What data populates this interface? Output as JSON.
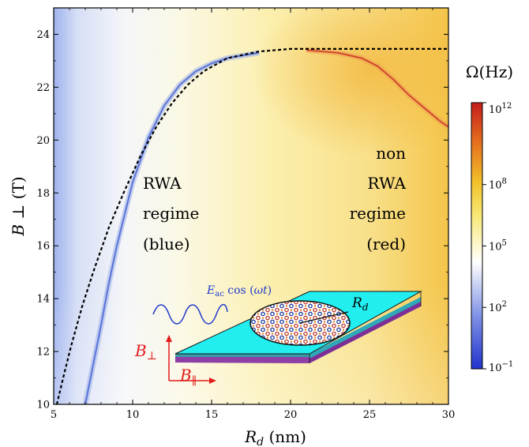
{
  "chart_data": {
    "type": "heatmap",
    "xlabel": "R_d (nm)",
    "ylabel": "B ⊥ (T)",
    "xlim": [
      5,
      30
    ],
    "ylim": [
      10,
      25
    ],
    "x_ticks": [
      "5",
      "10",
      "15",
      "20",
      "25",
      "30"
    ],
    "y_ticks": [
      "10",
      "12",
      "14",
      "16",
      "18",
      "20",
      "22",
      "24"
    ],
    "colorbar": {
      "label": "Ω(Hz)",
      "scale": "log",
      "ticks": [
        {
          "base": "10",
          "exp": "12",
          "value": 1000000000000.0
        },
        {
          "base": "10",
          "exp": "8",
          "value": 100000000.0
        },
        {
          "base": "10",
          "exp": "5",
          "value": 100000.0
        },
        {
          "base": "10",
          "exp": "2",
          "value": 100.0
        },
        {
          "base": "10",
          "exp": "−1",
          "value": 0.1
        }
      ],
      "colors": [
        "#2233cc",
        "#7f92e6",
        "#ffffff",
        "#f8e874",
        "#f2c12a",
        "#e36b1e",
        "#c51d1d"
      ]
    },
    "dashed_curve": {
      "x": [
        5.2,
        5.6,
        6.1,
        6.8,
        7.5,
        8.5,
        9.5,
        10.5,
        11.5,
        12.5,
        13.5,
        14.5,
        16,
        18,
        20,
        24,
        30
      ],
      "y": [
        10,
        11,
        12.2,
        13.7,
        15,
        16.7,
        18.1,
        19.4,
        20.5,
        21.4,
        22.1,
        22.6,
        23.1,
        23.35,
        23.45,
        23.45,
        23.45
      ]
    },
    "blue_resonance": {
      "x": [
        7,
        7.5,
        8,
        8.5,
        9,
        10,
        11,
        12,
        13,
        14,
        15,
        16,
        17,
        18
      ],
      "y": [
        10,
        11.5,
        13,
        14.6,
        16,
        18.4,
        20.1,
        21.3,
        22.1,
        22.6,
        22.9,
        23.1,
        23.2,
        23.3
      ]
    },
    "red_resonance": {
      "x": [
        21,
        23,
        24.5,
        25.5,
        26.5,
        27.5,
        28.5,
        29.5,
        30
      ],
      "y": [
        23.4,
        23.3,
        23.1,
        22.8,
        22.3,
        21.7,
        21.2,
        20.7,
        20.5
      ]
    },
    "annotations": {
      "left": [
        "RWA",
        "regime",
        "(blue)"
      ],
      "right": [
        "non",
        "RWA",
        "regime",
        "(red)"
      ]
    },
    "inset": {
      "wave_label": "E_ac cos (ωt)",
      "radius_label": "R_d",
      "b_perp_label": "B⊥",
      "b_par_label": "B∥"
    }
  }
}
